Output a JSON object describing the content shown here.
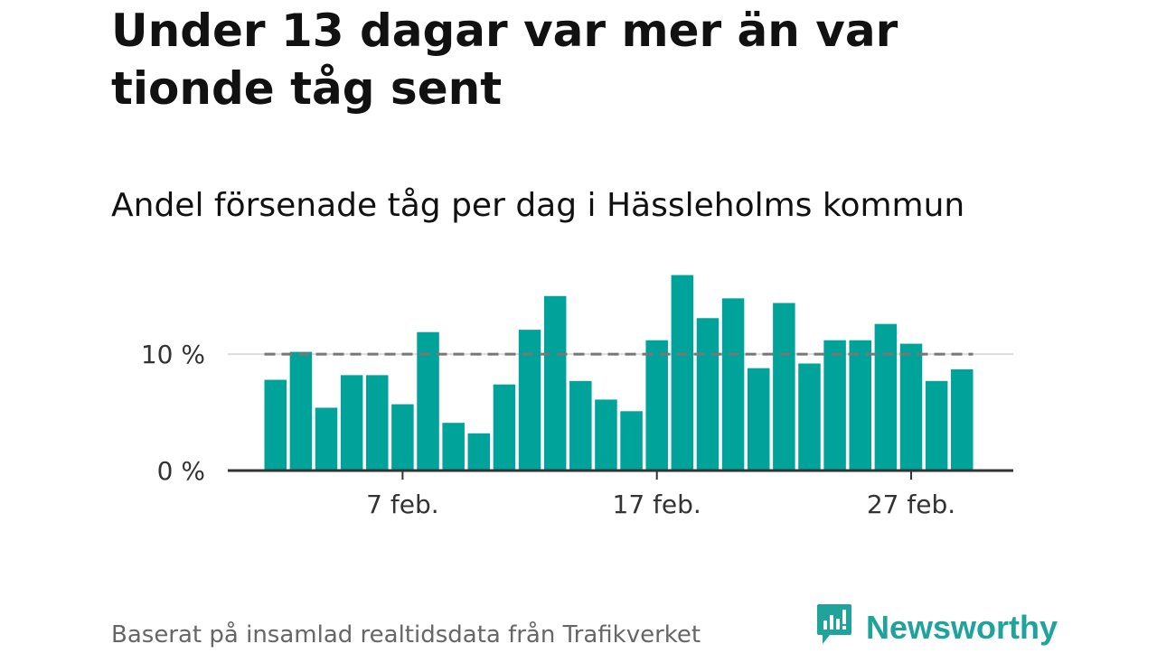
{
  "header": {
    "title": "Under 13 dagar var mer än var tionde tåg sent",
    "subtitle": "Andel försenade tåg per dag i Hässleholms kommun"
  },
  "footer": {
    "source": "Baserat på insamlad realtidsdata från Trafikverket",
    "brand": "Newsworthy",
    "brand_icon": "newsworthy-logo-icon"
  },
  "colors": {
    "bar": "#00a39a",
    "reference_line": "#777777",
    "axis": "#333333",
    "grid": "#dddddd",
    "brand": "#1fa39b"
  },
  "chart_data": {
    "type": "bar",
    "categories": [
      "2 feb.",
      "3 feb.",
      "4 feb.",
      "5 feb.",
      "6 feb.",
      "7 feb.",
      "8 feb.",
      "9 feb.",
      "10 feb.",
      "11 feb.",
      "12 feb.",
      "13 feb.",
      "14 feb.",
      "15 feb.",
      "16 feb.",
      "17 feb.",
      "18 feb.",
      "19 feb.",
      "20 feb.",
      "21 feb.",
      "22 feb.",
      "23 feb.",
      "24 feb.",
      "25 feb.",
      "26 feb.",
      "27 feb.",
      "28 feb.",
      "29 feb."
    ],
    "values": [
      7.8,
      10.2,
      5.4,
      8.2,
      8.2,
      5.7,
      11.9,
      4.1,
      3.2,
      7.4,
      12.1,
      15.0,
      7.7,
      6.1,
      5.1,
      11.2,
      16.8,
      13.1,
      14.8,
      8.8,
      14.4,
      9.2,
      11.2,
      11.2,
      12.6,
      10.9,
      7.7,
      8.7
    ],
    "reference_line": 10,
    "ylim": [
      0,
      17
    ],
    "yticks": [
      0,
      10
    ],
    "ytick_labels": [
      "0 %",
      "10 %"
    ],
    "xtick_labels": [
      "7 feb.",
      "17 feb.",
      "27 feb."
    ],
    "xtick_categories": [
      "7 feb.",
      "17 feb.",
      "27 feb."
    ],
    "grid": true
  }
}
